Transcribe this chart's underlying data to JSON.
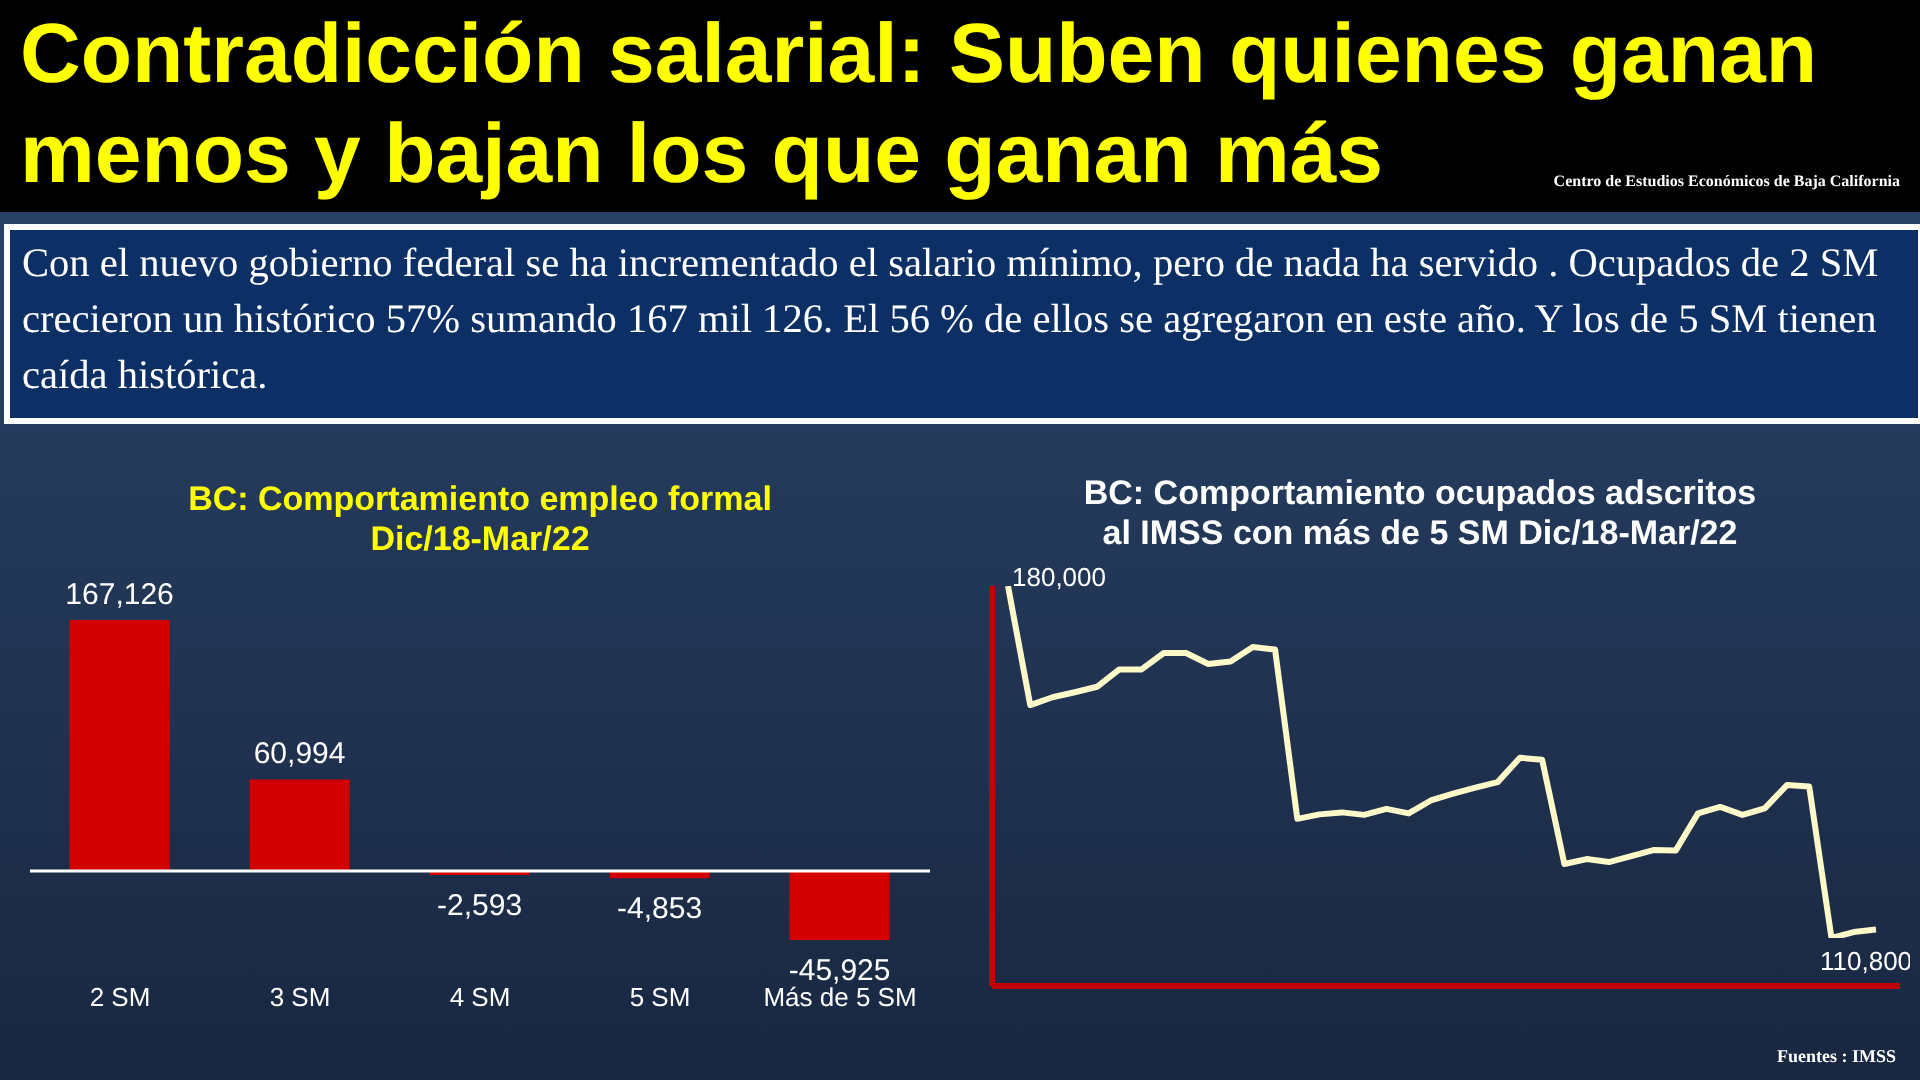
{
  "chart_data": [
    {
      "type": "other",
      "title": "Contradicción salarial: Suben quienes ganan menos y bajan los que ganan más",
      "subtitle": "Con el nuevo gobierno federal se ha incrementado el salario mínimo, pero de nada ha servido . Ocupados de 2 SM crecieron un histórico 57% sumando 167 mil 126.  El 56 % de ellos se agregaron en este año. Y los de 5 SM tienen caída histórica.",
      "annotations": [
        "Centro de Estudios  Económicos  de Baja California",
        "Fuentes : IMSS"
      ]
    },
    {
      "type": "bar",
      "title": "BC: Comportamiento empleo formal\nDic/18-Mar/22",
      "categories": [
        "2 SM",
        "3 SM",
        "4 SM",
        "5 SM",
        "Más de 5  SM"
      ],
      "values": [
        167126,
        60994,
        -2593,
        -4853,
        -45925
      ],
      "color": "#d40000",
      "value_labels": [
        "167,126",
        "60,994",
        "-2,593",
        "-4,853",
        "-45,925"
      ]
    },
    {
      "type": "line",
      "title": "BC: Comportamiento ocupados adscritos\nal IMSS con más de 5 SM Dic/18-Mar/22",
      "categories": [
        null,
        null,
        null,
        null,
        null,
        null,
        null,
        null,
        null,
        null,
        null,
        null,
        null,
        null,
        null,
        null,
        null,
        null,
        null,
        null,
        null,
        null,
        null,
        null,
        null,
        null,
        null,
        null,
        null,
        null,
        null,
        null,
        null,
        null,
        null,
        null,
        null,
        null,
        null,
        null
      ],
      "values": [
        180000,
        156000,
        157600,
        158600,
        159700,
        163200,
        163200,
        166500,
        166500,
        164300,
        164800,
        167700,
        167200,
        133100,
        134000,
        134400,
        133900,
        135100,
        134200,
        136800,
        138200,
        139400,
        140500,
        145400,
        145000,
        124000,
        125000,
        124400,
        125600,
        126800,
        126700,
        134200,
        135500,
        133900,
        135200,
        139900,
        139600,
        109100,
        110300,
        110800
      ],
      "value_labels": [
        "180,000",
        null,
        null,
        null,
        null,
        null,
        null,
        null,
        null,
        null,
        null,
        null,
        null,
        null,
        null,
        null,
        null,
        null,
        null,
        null,
        null,
        null,
        null,
        null,
        null,
        null,
        null,
        null,
        null,
        null,
        null,
        null,
        null,
        null,
        null,
        null,
        null,
        null,
        null,
        "110,800"
      ],
      "color": "#fff8c8",
      "marker": "none"
    }
  ]
}
